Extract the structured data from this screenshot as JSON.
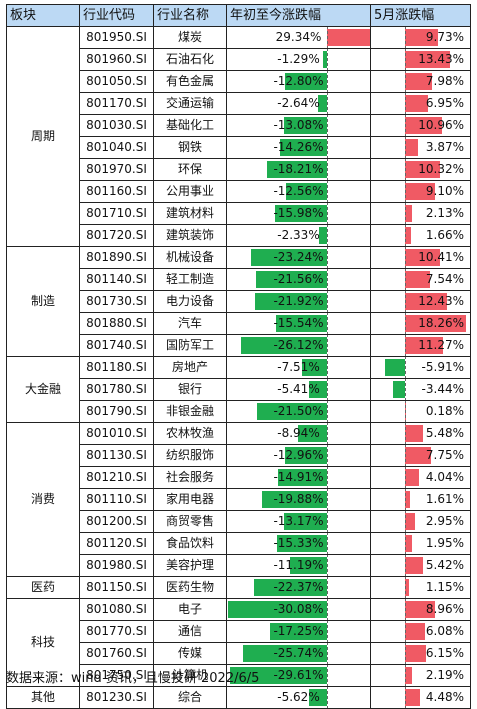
{
  "headers": {
    "sector": "板块",
    "code": "行业代码",
    "name": "行业名称",
    "ytd": "年初至今涨跌幅",
    "may": "5月涨跌幅"
  },
  "colors": {
    "up": "#f05a64",
    "down": "#1fae50",
    "header_bg": "#bcd9f4"
  },
  "groups": [
    {
      "sector": "周期",
      "rows": [
        {
          "code": "801950.SI",
          "name": "煤炭",
          "ytd_label": "29.34%",
          "ytd": 29.34,
          "may_label": "9.73%",
          "may": 9.73
        },
        {
          "code": "801960.SI",
          "name": "石油石化",
          "ytd_label": "-1.29%",
          "ytd": -1.29,
          "may_label": "13.43%",
          "may": 13.43
        },
        {
          "code": "801050.SI",
          "name": "有色金属",
          "ytd_label": "-12.80%",
          "ytd": -12.8,
          "may_label": "7.98%",
          "may": 7.98
        },
        {
          "code": "801170.SI",
          "name": "交通运输",
          "ytd_label": "-2.64%",
          "ytd": -2.64,
          "may_label": "6.95%",
          "may": 6.95
        },
        {
          "code": "801030.SI",
          "name": "基础化工",
          "ytd_label": "-13.08%",
          "ytd": -13.08,
          "may_label": "10.96%",
          "may": 10.96
        },
        {
          "code": "801040.SI",
          "name": "钢铁",
          "ytd_label": "-14.26%",
          "ytd": -14.26,
          "may_label": "3.87%",
          "may": 3.87
        },
        {
          "code": "801970.SI",
          "name": "环保",
          "ytd_label": "-18.21%",
          "ytd": -18.21,
          "may_label": "10.32%",
          "may": 10.32
        },
        {
          "code": "801160.SI",
          "name": "公用事业",
          "ytd_label": "-12.56%",
          "ytd": -12.56,
          "may_label": "9.10%",
          "may": 9.1
        },
        {
          "code": "801710.SI",
          "name": "建筑材料",
          "ytd_label": "-15.98%",
          "ytd": -15.98,
          "may_label": "2.13%",
          "may": 2.13
        },
        {
          "code": "801720.SI",
          "name": "建筑装饰",
          "ytd_label": "-2.33%",
          "ytd": -2.33,
          "may_label": "1.66%",
          "may": 1.66
        }
      ]
    },
    {
      "sector": "制造",
      "rows": [
        {
          "code": "801890.SI",
          "name": "机械设备",
          "ytd_label": "-23.24%",
          "ytd": -23.24,
          "may_label": "10.41%",
          "may": 10.41
        },
        {
          "code": "801140.SI",
          "name": "轻工制造",
          "ytd_label": "-21.56%",
          "ytd": -21.56,
          "may_label": "7.54%",
          "may": 7.54
        },
        {
          "code": "801730.SI",
          "name": "电力设备",
          "ytd_label": "-21.92%",
          "ytd": -21.92,
          "may_label": "12.43%",
          "may": 12.43
        },
        {
          "code": "801880.SI",
          "name": "汽车",
          "ytd_label": "-15.54%",
          "ytd": -15.54,
          "may_label": "18.26%",
          "may": 18.26
        },
        {
          "code": "801740.SI",
          "name": "国防军工",
          "ytd_label": "-26.12%",
          "ytd": -26.12,
          "may_label": "11.27%",
          "may": 11.27
        }
      ]
    },
    {
      "sector": "大金融",
      "rows": [
        {
          "code": "801180.SI",
          "name": "房地产",
          "ytd_label": "-7.51%",
          "ytd": -7.51,
          "may_label": "-5.91%",
          "may": -5.91
        },
        {
          "code": "801780.SI",
          "name": "银行",
          "ytd_label": "-5.41%",
          "ytd": -5.41,
          "may_label": "-3.44%",
          "may": -3.44
        },
        {
          "code": "801790.SI",
          "name": "非银金融",
          "ytd_label": "-21.50%",
          "ytd": -21.5,
          "may_label": "0.18%",
          "may": 0.18
        }
      ]
    },
    {
      "sector": "消费",
      "rows": [
        {
          "code": "801010.SI",
          "name": "农林牧渔",
          "ytd_label": "-8.94%",
          "ytd": -8.94,
          "may_label": "5.48%",
          "may": 5.48
        },
        {
          "code": "801130.SI",
          "name": "纺织服饰",
          "ytd_label": "-12.96%",
          "ytd": -12.96,
          "may_label": "7.75%",
          "may": 7.75
        },
        {
          "code": "801210.SI",
          "name": "社会服务",
          "ytd_label": "-14.91%",
          "ytd": -14.91,
          "may_label": "4.04%",
          "may": 4.04
        },
        {
          "code": "801110.SI",
          "name": "家用电器",
          "ytd_label": "-19.88%",
          "ytd": -19.88,
          "may_label": "1.61%",
          "may": 1.61
        },
        {
          "code": "801200.SI",
          "name": "商贸零售",
          "ytd_label": "-13.17%",
          "ytd": -13.17,
          "may_label": "2.95%",
          "may": 2.95
        },
        {
          "code": "801120.SI",
          "name": "食品饮料",
          "ytd_label": "-15.33%",
          "ytd": -15.33,
          "may_label": "1.95%",
          "may": 1.95
        },
        {
          "code": "801980.SI",
          "name": "美容护理",
          "ytd_label": "-11.19%",
          "ytd": -11.19,
          "may_label": "5.42%",
          "may": 5.42
        }
      ]
    },
    {
      "sector": "医药",
      "rows": [
        {
          "code": "801150.SI",
          "name": "医药生物",
          "ytd_label": "-22.37%",
          "ytd": -22.37,
          "may_label": "1.15%",
          "may": 1.15
        }
      ]
    },
    {
      "sector": "科技",
      "rows": [
        {
          "code": "801080.SI",
          "name": "电子",
          "ytd_label": "-30.08%",
          "ytd": -30.08,
          "may_label": "8.96%",
          "may": 8.96
        },
        {
          "code": "801770.SI",
          "name": "通信",
          "ytd_label": "-17.25%",
          "ytd": -17.25,
          "may_label": "6.08%",
          "may": 6.08
        },
        {
          "code": "801760.SI",
          "name": "传媒",
          "ytd_label": "-25.74%",
          "ytd": -25.74,
          "may_label": "6.15%",
          "may": 6.15
        },
        {
          "code": "801750.SI",
          "name": "计算机",
          "ytd_label": "-29.61%",
          "ytd": -29.61,
          "may_label": "2.19%",
          "may": 2.19
        }
      ]
    },
    {
      "sector": "其他",
      "rows": [
        {
          "code": "801230.SI",
          "name": "综合",
          "ytd_label": "-5.62%",
          "ytd": -5.62,
          "may_label": "4.48%",
          "may": 4.48
        }
      ]
    }
  ],
  "source": "数据来源：wind 资讯，且慢投研 2022/6/5"
}
